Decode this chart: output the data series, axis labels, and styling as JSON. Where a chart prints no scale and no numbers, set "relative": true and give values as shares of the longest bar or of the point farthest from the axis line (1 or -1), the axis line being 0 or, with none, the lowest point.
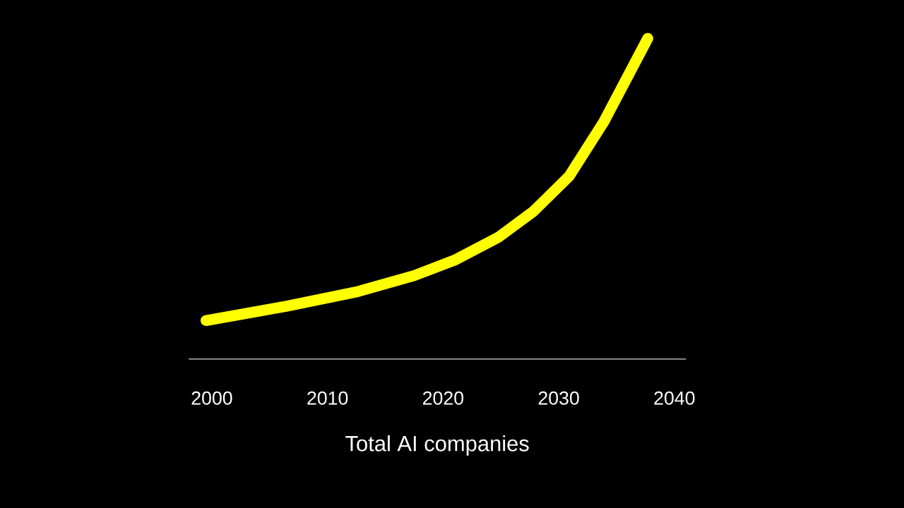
{
  "chart_data": {
    "type": "line",
    "relative": true,
    "xlabel": "Total AI companies",
    "x": [
      1999.5,
      2006.5,
      2012.6,
      2017.5,
      2021.1,
      2024.8,
      2027.8,
      2030.9,
      2033.9,
      2037.7
    ],
    "series": [
      {
        "color": "#ffff00",
        "values": [
          0.12,
          0.165,
          0.21,
          0.26,
          0.31,
          0.38,
          0.46,
          0.57,
          0.74,
          1
        ]
      }
    ],
    "xlim": [
      1998,
      2041
    ],
    "xticks": [
      2000,
      2010,
      2020,
      2030,
      2040
    ]
  }
}
